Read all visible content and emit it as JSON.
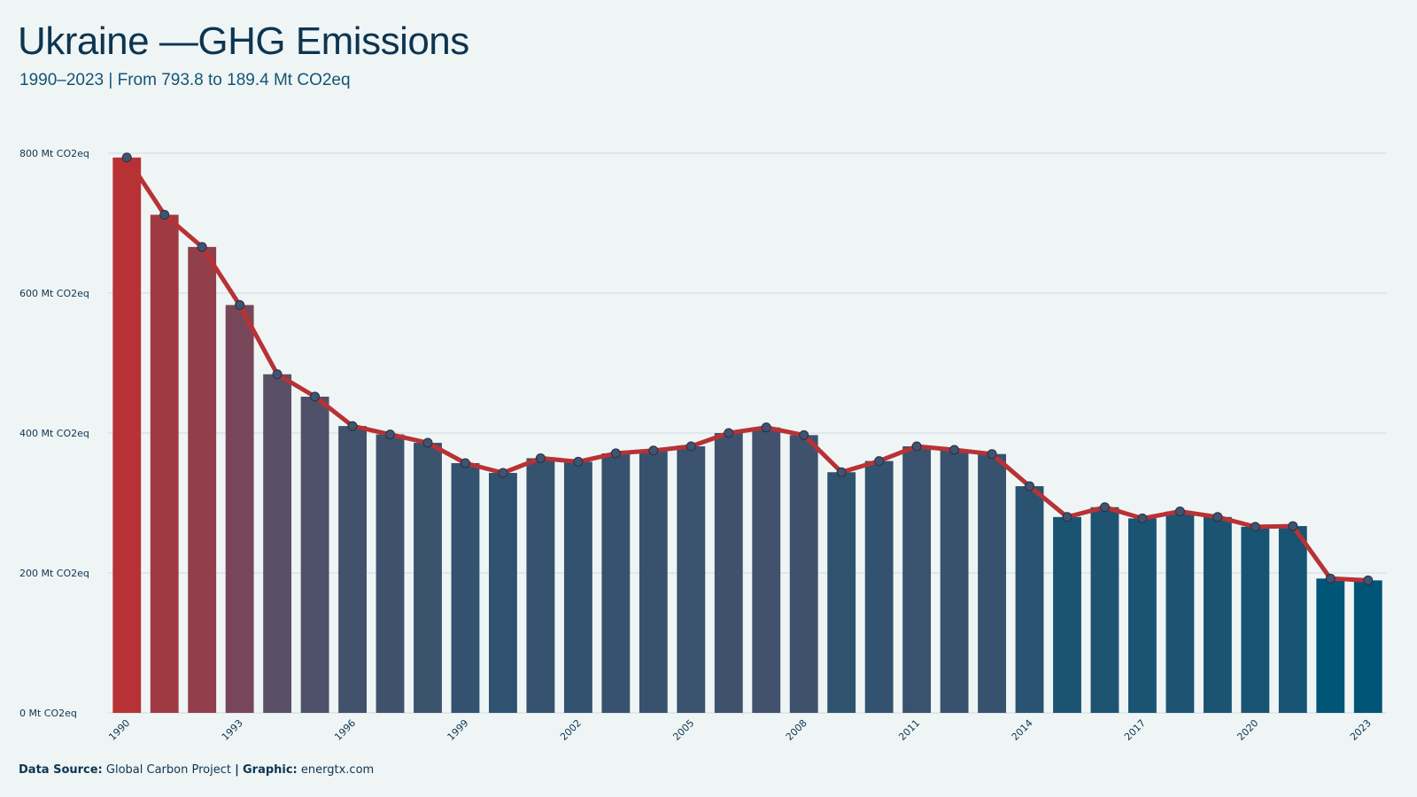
{
  "chart_data": {
    "type": "bar",
    "title": "Ukraine —GHG Emissions",
    "subtitle": "1990–2023 | From 793.8 to 189.4 Mt CO2eq",
    "x": [
      1990,
      1991,
      1992,
      1993,
      1994,
      1995,
      1996,
      1997,
      1998,
      1999,
      2000,
      2001,
      2002,
      2003,
      2004,
      2005,
      2006,
      2007,
      2008,
      2009,
      2010,
      2011,
      2012,
      2013,
      2014,
      2015,
      2016,
      2017,
      2018,
      2019,
      2020,
      2021,
      2022,
      2023
    ],
    "values": [
      793.8,
      712,
      666,
      583,
      484,
      452,
      410,
      398,
      386,
      357,
      343,
      364,
      359,
      371,
      375,
      381,
      400,
      408,
      397,
      344,
      360,
      381,
      376,
      370,
      324,
      280,
      294,
      278,
      288,
      280,
      266,
      267,
      192,
      189.4
    ],
    "overlay_line": true,
    "x_tick_labels": [
      "1990",
      "1993",
      "1996",
      "1999",
      "2002",
      "2005",
      "2008",
      "2011",
      "2014",
      "2017",
      "2020",
      "2023"
    ],
    "y_ticks": [
      0,
      200,
      400,
      600,
      800
    ],
    "y_tick_labels": [
      "0 Mt CO2eq",
      "200 Mt CO2eq",
      "400 Mt CO2eq",
      "600 Mt CO2eq",
      "800 Mt CO2eq"
    ],
    "ylim": [
      0,
      800
    ],
    "xlabel": "",
    "ylabel": "",
    "grid": true,
    "colors": {
      "high": "#b83235",
      "mid": "#5b5068",
      "low": "#005577",
      "line": "#b83235",
      "marker_fill": "#3f5472",
      "grid": "#d3dfe3",
      "background": "#eff5f5"
    }
  },
  "footer": {
    "source_label": "Data Source:",
    "source_value": "Global Carbon Project",
    "separator": "|",
    "graphic_label": "Graphic:",
    "graphic_value": "energtx.com"
  }
}
